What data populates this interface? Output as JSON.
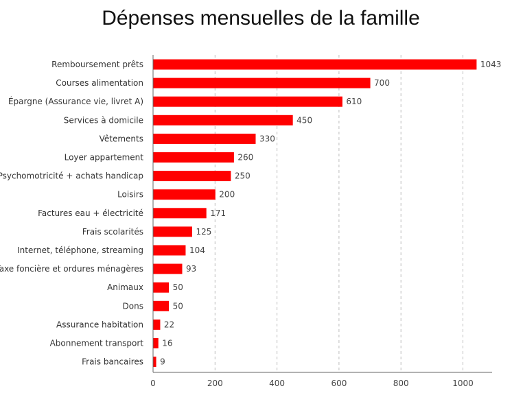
{
  "chart_data": {
    "type": "bar",
    "orientation": "horizontal",
    "title": "Dépenses mensuelles de la famille",
    "xlabel": "",
    "ylabel": "",
    "xlim": [
      0,
      1100
    ],
    "xticks": [
      0,
      200,
      400,
      600,
      800,
      1000
    ],
    "grid": "vertical-dashed",
    "bar_color": "#ff0000",
    "categories": [
      "Remboursement prêts",
      "Courses alimentation",
      "Épargne (Assurance vie, livret A)",
      "Services à domicile",
      "Vêtements",
      "Loyer appartement",
      "Psychomotricité + achats handicap",
      "Loisirs",
      "Factures eau + électricité",
      "Frais scolarités",
      "Internet, téléphone, streaming",
      "Taxe foncière et ordures ménagères",
      "Animaux",
      "Dons",
      "Assurance habitation",
      "Abonnement transport",
      "Frais bancaires"
    ],
    "values": [
      1043,
      700,
      610,
      450,
      330,
      260,
      250,
      200,
      171,
      125,
      104,
      93,
      50,
      50,
      22,
      16,
      9
    ]
  }
}
